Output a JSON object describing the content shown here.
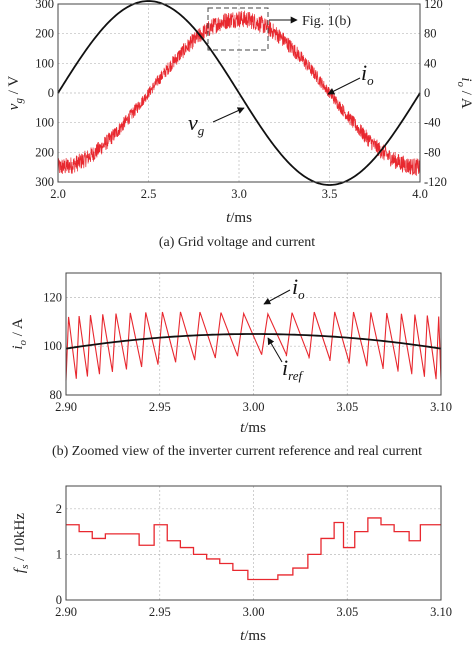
{
  "colors": {
    "black_series": "#111111",
    "red_series": "#e8282f",
    "axis": "#444444"
  },
  "chart_data": [
    {
      "type": "line",
      "caption": "(a) Grid voltage and current",
      "xlabel_italic": "t",
      "xlabel_unit": "/ms",
      "ylabel_left_var": "v",
      "ylabel_left_sub": "g",
      "ylabel_left_unit": " / V",
      "ylabel_right_var": "i",
      "ylabel_right_sub": "o",
      "ylabel_right_unit": " / A",
      "xlim": [
        2.0,
        4.0
      ],
      "xticks": [
        "2.0",
        "2.5",
        "3.0",
        "3.5",
        "4.0"
      ],
      "ylim_left": [
        -300,
        300
      ],
      "yticks_left": [
        "300",
        "200",
        "100",
        "0",
        "100",
        "200",
        "300"
      ],
      "ylim_right": [
        -120,
        120
      ],
      "yticks_right": [
        "120",
        "80",
        "40",
        "0",
        "-40",
        "-80",
        "-120"
      ],
      "series": [
        {
          "label": "v_g",
          "axis": "left",
          "color": "#111111",
          "amplitude": 310,
          "period_ms": 2.0,
          "phase_peak_ms": 2.5
        },
        {
          "label": "i_o",
          "axis": "right",
          "color": "#e8282f",
          "amplitude": 100,
          "period_ms": 2.0,
          "phase_peak_ms": 3.0,
          "ripple": 12
        }
      ],
      "annotations": [
        {
          "text": "Fig. 1(b)",
          "kind": "callout-box",
          "x_range": [
            2.83,
            3.17
          ],
          "y_range_right": [
            80,
            120
          ]
        },
        {
          "var": "i",
          "sub": "o",
          "kind": "arrow-label"
        },
        {
          "var": "v",
          "sub": "g",
          "kind": "arrow-label"
        }
      ],
      "grid": true
    },
    {
      "type": "line",
      "caption": "(b) Zoomed view of the inverter current reference and real current",
      "xlabel_italic": "t",
      "xlabel_unit": "/ms",
      "ylabel_var": "i",
      "ylabel_sub": "o",
      "ylabel_unit": " / A",
      "xlim": [
        2.9,
        3.1
      ],
      "xticks": [
        "2.90",
        "2.95",
        "3.00",
        "3.05",
        "3.10"
      ],
      "ylim": [
        80,
        130
      ],
      "yticks": [
        "120",
        "100",
        "80"
      ],
      "series": [
        {
          "label": "i_ref",
          "color": "#111111",
          "x": [
            2.9,
            2.95,
            3.0,
            3.05,
            3.1
          ],
          "y": [
            99,
            103,
            105,
            103,
            99
          ]
        },
        {
          "label": "i_o",
          "color": "#e8282f",
          "ripple": 11
        }
      ],
      "annotations": [
        {
          "var": "i",
          "sub": "o",
          "kind": "arrow-label"
        },
        {
          "var": "i",
          "sub": "ref",
          "kind": "arrow-label"
        }
      ],
      "grid": true
    },
    {
      "type": "line",
      "caption": "",
      "xlabel_italic": "t",
      "xlabel_unit": "/ms",
      "ylabel_var": "f",
      "ylabel_sub": "s",
      "ylabel_unit": " / 10kHz",
      "xlim": [
        2.9,
        3.1
      ],
      "xticks": [
        "2.90",
        "2.95",
        "3.00",
        "3.05",
        "3.10"
      ],
      "ylim": [
        0,
        2.5
      ],
      "yticks": [
        "2",
        "1",
        "0"
      ],
      "series": [
        {
          "label": "f_s",
          "color": "#e8282f",
          "step": true,
          "x": [
            2.9,
            2.907,
            2.914,
            2.921,
            2.939,
            2.947,
            2.954,
            2.961,
            2.968,
            2.975,
            2.982,
            2.989,
            2.997,
            3.004,
            3.013,
            3.021,
            3.029,
            3.036,
            3.043,
            3.048,
            3.054,
            3.061,
            3.068,
            3.075,
            3.083,
            3.089,
            3.1
          ],
          "y": [
            1.65,
            1.5,
            1.35,
            1.45,
            1.2,
            1.65,
            1.3,
            1.15,
            1.0,
            0.9,
            0.8,
            0.65,
            0.45,
            0.45,
            0.55,
            0.7,
            1.0,
            1.35,
            1.7,
            1.15,
            1.5,
            1.8,
            1.65,
            1.5,
            1.3,
            1.65,
            1.65
          ]
        }
      ],
      "grid": true
    }
  ]
}
